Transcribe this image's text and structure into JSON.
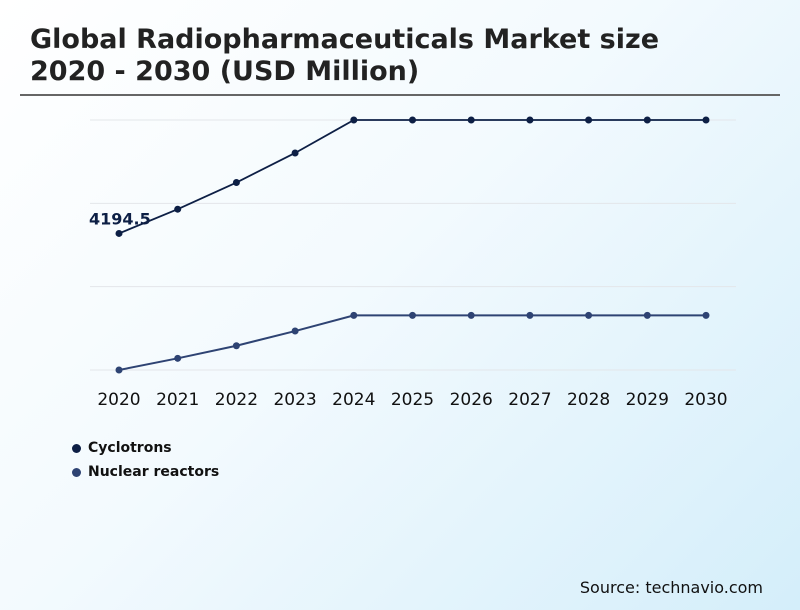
{
  "title_line1": "Global Radiopharmaceuticals Market size",
  "title_line2": "2020 - 2030 (USD Million)",
  "source": "Source: technavio.com",
  "chart_data": {
    "type": "line",
    "title": "Global Radiopharmaceuticals Market size 2020 - 2030 (USD Million)",
    "x": [
      "2020",
      "2021",
      "2022",
      "2023",
      "2024",
      "2025",
      "2026",
      "2027",
      "2028",
      "2029",
      "2030"
    ],
    "ylim": [
      0,
      7680
    ],
    "grid": true,
    "legend": "bottom-left",
    "series": [
      {
        "name": "Cyclotrons",
        "color": "#0d1f45",
        "values": [
          4194.5,
          4940,
          5759,
          6667,
          7680,
          7680,
          7680,
          7680,
          7680,
          7680,
          7680
        ]
      },
      {
        "name": "Nuclear reactors",
        "color": "#2e4373",
        "values": [
          0,
          359,
          746,
          1197,
          1678,
          1678,
          1678,
          1678,
          1678,
          1678,
          1678
        ]
      }
    ],
    "data_labels": [
      {
        "series": "Cyclotrons",
        "x": "2020",
        "text": "4194.5"
      }
    ]
  }
}
